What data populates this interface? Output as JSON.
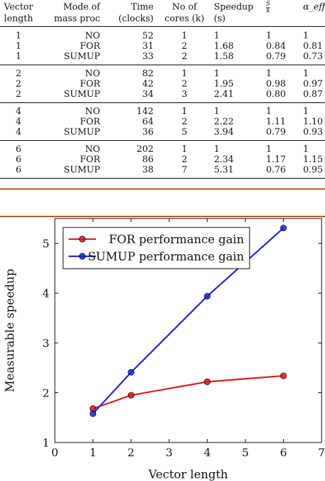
{
  "table": {
    "headers": {
      "vector_length": [
        "Vector",
        "length"
      ],
      "mode": [
        "Mode of",
        "mass proc"
      ],
      "time": [
        "Time",
        "(clocks)"
      ],
      "cores": [
        "No of",
        "cores (k)"
      ],
      "speedup": [
        "Speedup",
        "(s)"
      ],
      "s_over_k": {
        "num": "S",
        "den": "k"
      },
      "alpha_eff": "α_eff"
    },
    "groups": [
      {
        "rows": [
          [
            "1",
            "NO",
            "52",
            "1",
            "1",
            "1",
            "1"
          ],
          [
            "1",
            "FOR",
            "31",
            "2",
            "1.68",
            "0.84",
            "0.81"
          ],
          [
            "1",
            "SUMUP",
            "33",
            "2",
            "1.58",
            "0.79",
            "0.73"
          ]
        ]
      },
      {
        "rows": [
          [
            "2",
            "NO",
            "82",
            "1",
            "1",
            "1",
            "1"
          ],
          [
            "2",
            "FOR",
            "42",
            "2",
            "1.95",
            "0.98",
            "0.97"
          ],
          [
            "2",
            "SUMUP",
            "34",
            "3",
            "2.41",
            "0.80",
            "0.87"
          ]
        ]
      },
      {
        "rows": [
          [
            "4",
            "NO",
            "142",
            "1",
            "1",
            "1",
            "1"
          ],
          [
            "4",
            "FOR",
            "64",
            "2",
            "2.22",
            "1.11",
            "1.10"
          ],
          [
            "4",
            "SUMUP",
            "36",
            "5",
            "3.94",
            "0.79",
            "0.93"
          ]
        ]
      },
      {
        "rows": [
          [
            "6",
            "NO",
            "202",
            "1",
            "1",
            "1",
            "1"
          ],
          [
            "6",
            "FOR",
            "86",
            "2",
            "2.34",
            "1.17",
            "1.15"
          ],
          [
            "6",
            "SUMUP",
            "38",
            "7",
            "5.31",
            "0.76",
            "0.95"
          ]
        ]
      }
    ]
  },
  "chart_data": {
    "type": "line",
    "xlabel": "Vector length",
    "ylabel": "Measurable speedup",
    "xlim": [
      0,
      7
    ],
    "ylim": [
      1,
      5.5
    ],
    "x_ticks": [
      "0",
      "1",
      "2",
      "3",
      "4",
      "5",
      "6",
      "7"
    ],
    "y_ticks": [
      "1",
      "2",
      "3",
      "4",
      "5"
    ],
    "grid": false,
    "legend_position": "top-left",
    "series": [
      {
        "name": "FOR performance gain",
        "color": "#e8141c",
        "x": [
          1,
          2,
          4,
          6
        ],
        "values": [
          1.68,
          1.95,
          2.22,
          2.34
        ]
      },
      {
        "name": "SUMUP performance gain",
        "color": "#1a26d6",
        "x": [
          1,
          2,
          4,
          6
        ],
        "values": [
          1.58,
          2.41,
          3.94,
          5.31
        ]
      }
    ]
  }
}
